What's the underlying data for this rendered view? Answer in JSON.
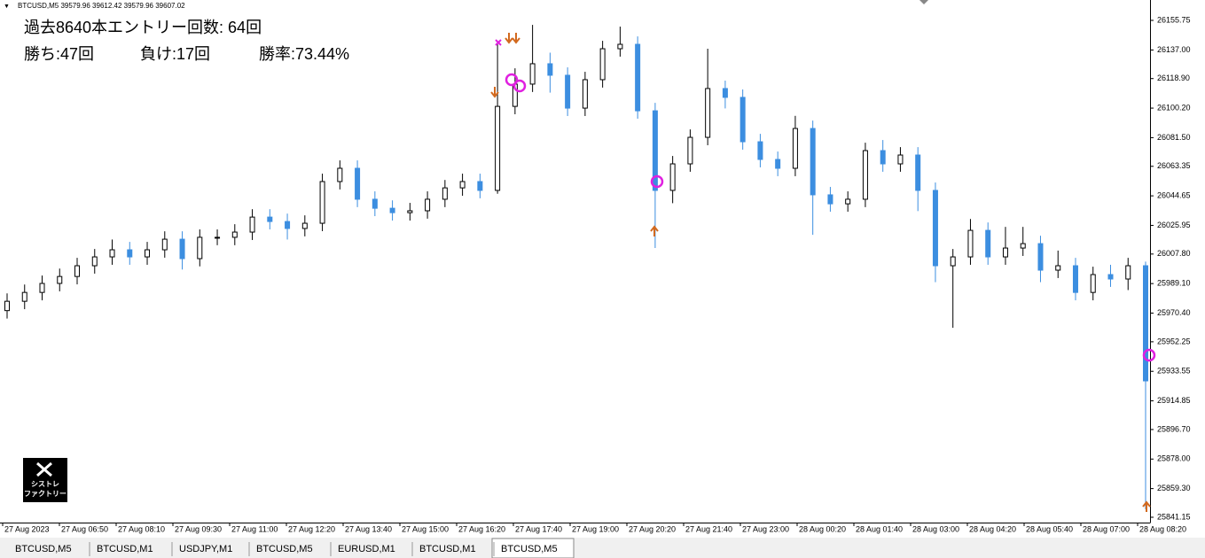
{
  "header": "BTCUSD,M5  39579.96 39612.42 39579.96 39607.02",
  "annotations": {
    "entries": "過去8640本エントリー回数: 64回",
    "wins": "勝ち:47回",
    "losses": "負け:17回",
    "win_rate": "勝率:73.44%"
  },
  "logo": {
    "line1": "シストレ",
    "line2": "ファクトリー"
  },
  "tabs": [
    "BTCUSD,M5",
    "BTCUSD,M1",
    "USDJPY,M1",
    "BTCUSD,M5",
    "EURUSD,M1",
    "BTCUSD,M1",
    "BTCUSD,M5"
  ],
  "chart_data": {
    "type": "candlestick",
    "x_labels": [
      "27 Aug 2023",
      "27 Aug 06:50",
      "27 Aug 08:10",
      "27 Aug 09:30",
      "27 Aug 11:00",
      "27 Aug 12:20",
      "27 Aug 13:40",
      "27 Aug 15:00",
      "27 Aug 16:20",
      "27 Aug 17:40",
      "27 Aug 19:00",
      "27 Aug 20:20",
      "27 Aug 21:40",
      "27 Aug 23:00",
      "28 Aug 00:20",
      "28 Aug 01:40",
      "28 Aug 03:00",
      "28 Aug 04:20",
      "28 Aug 05:40",
      "28 Aug 07:00",
      "28 Aug 08:20"
    ],
    "open": [
      25972.0,
      25977.9,
      25983.5,
      25989.2,
      25993.6,
      26000.4,
      26006.0,
      26010.5,
      26006.0,
      26010.5,
      26017.2,
      26004.9,
      26018.4,
      26018.4,
      26021.7,
      26031.2,
      26028.4,
      26024.0,
      26027.3,
      26053.7,
      26062.1,
      26042.5,
      26036.8,
      26034.0,
      26035.2,
      26042.5,
      26049.7,
      26053.7,
      26048.1,
      26101.3,
      26115.4,
      26128.3,
      26121.0,
      26100.2,
      26118.2,
      26137.8,
      26140.6,
      26098.5,
      26048.1,
      26064.9,
      26081.7,
      26112.6,
      26107.0,
      26078.9,
      26067.7,
      26062.1,
      26087.3,
      26045.3,
      26039.6,
      26042.5,
      26073.3,
      26064.9,
      26070.5,
      26048.1,
      26000.4,
      26006.0,
      26022.8,
      26006.0,
      26011.6,
      26014.4,
      25997.6,
      26000.4,
      25983.5,
      25994.8,
      25992.0,
      26000.4
    ],
    "high": [
      25982.9,
      25988.5,
      25994.2,
      25998.6,
      26005.4,
      26011.0,
      26017.0,
      26015.5,
      26015.5,
      26022.2,
      26022.2,
      26023.4,
      26023.4,
      26026.7,
      26036.2,
      26036.2,
      26033.4,
      26032.3,
      26058.7,
      26067.1,
      26067.1,
      26047.5,
      26041.8,
      26040.2,
      26047.5,
      26054.7,
      26058.7,
      26058.7,
      26141.0,
      26125.4,
      26152.9,
      26135.3,
      26126.0,
      26123.2,
      26142.8,
      26151.8,
      26145.6,
      26103.5,
      26069.9,
      26086.7,
      26137.8,
      26117.6,
      26112.0,
      26083.9,
      26072.7,
      26095.3,
      26092.3,
      26050.3,
      26047.5,
      26078.3,
      26080.0,
      26075.5,
      26075.5,
      26053.1,
      26011.0,
      26030.0,
      26027.8,
      26025.0,
      26025.0,
      26019.4,
      26010.0,
      26005.4,
      25999.8,
      26001.0,
      26005.4,
      26003.0
    ],
    "low": [
      25967.0,
      25972.9,
      25978.5,
      25984.2,
      25988.6,
      25995.4,
      26001.0,
      26001.0,
      26001.0,
      26005.5,
      25998.0,
      26000.0,
      26013.4,
      26013.4,
      26016.7,
      26023.4,
      26017.0,
      26019.0,
      26022.3,
      26048.7,
      26037.5,
      26031.8,
      26029.0,
      26029.0,
      26030.2,
      26037.5,
      26044.7,
      26043.1,
      26046.0,
      26096.3,
      26110.4,
      26110.0,
      26095.2,
      26095.2,
      26113.2,
      26132.8,
      26093.5,
      26011.6,
      26040.0,
      26059.9,
      26076.7,
      26100.0,
      26073.9,
      26062.7,
      26057.1,
      26057.1,
      26020.0,
      26034.6,
      26034.6,
      26037.5,
      26059.9,
      26059.9,
      26035.0,
      25990.0,
      25961.1,
      26001.0,
      26001.0,
      26001.0,
      26006.6,
      25990.0,
      25992.6,
      25978.5,
      25978.5,
      25987.0,
      25985.0,
      25846.2
    ],
    "close": [
      25977.9,
      25983.5,
      25989.2,
      25993.6,
      26000.4,
      26006.0,
      26010.5,
      26006.0,
      26010.5,
      26017.2,
      26004.9,
      26018.4,
      26018.4,
      26021.7,
      26031.2,
      26028.4,
      26024.0,
      26027.3,
      26053.7,
      26062.1,
      26042.5,
      26036.8,
      26034.0,
      26035.2,
      26042.5,
      26049.7,
      26053.7,
      26048.1,
      26101.3,
      26115.4,
      26128.3,
      26121.0,
      26100.2,
      26118.2,
      26137.8,
      26140.6,
      26098.5,
      26048.1,
      26064.9,
      26081.7,
      26112.6,
      26107.0,
      26078.9,
      26067.7,
      26062.1,
      26087.3,
      26045.3,
      26039.6,
      26042.5,
      26073.3,
      26064.9,
      26070.5,
      26048.1,
      26000.4,
      26006.0,
      26022.8,
      26006.0,
      26011.6,
      26014.4,
      25997.6,
      26000.4,
      25983.5,
      25994.8,
      25992.0,
      26000.4,
      25927.5
    ],
    "up_color": "#ffffff",
    "down_color": "#3c8ee0",
    "wick_color": "#000000",
    "ylim": [
      25834.98,
      26168.65
    ],
    "yticks": [
      {
        "value": 26155.75,
        "label": "26155.75"
      },
      {
        "value": 26137.0,
        "label": "26137.00"
      },
      {
        "value": 26118.9,
        "label": "26118.90"
      },
      {
        "value": 26100.2,
        "label": "26100.20"
      },
      {
        "value": 26081.5,
        "label": "26081.50"
      },
      {
        "value": 26063.35,
        "label": "26063.35"
      },
      {
        "value": 26044.65,
        "label": "26044.65"
      },
      {
        "value": 26025.95,
        "label": "26025.95"
      },
      {
        "value": 26007.8,
        "label": "26007.80"
      },
      {
        "value": 25989.1,
        "label": "25989.10"
      },
      {
        "value": 25970.4,
        "label": "25970.40"
      },
      {
        "value": 25952.25,
        "label": "25952.25"
      },
      {
        "value": 25933.55,
        "label": "25933.55"
      },
      {
        "value": 25914.85,
        "label": "25914.85"
      },
      {
        "value": 25896.7,
        "label": "25896.70"
      },
      {
        "value": 25878.0,
        "label": "25878.00"
      },
      {
        "value": 25859.3,
        "label": "25859.30"
      },
      {
        "value": 25841.15,
        "label": "25841.15"
      }
    ]
  }
}
